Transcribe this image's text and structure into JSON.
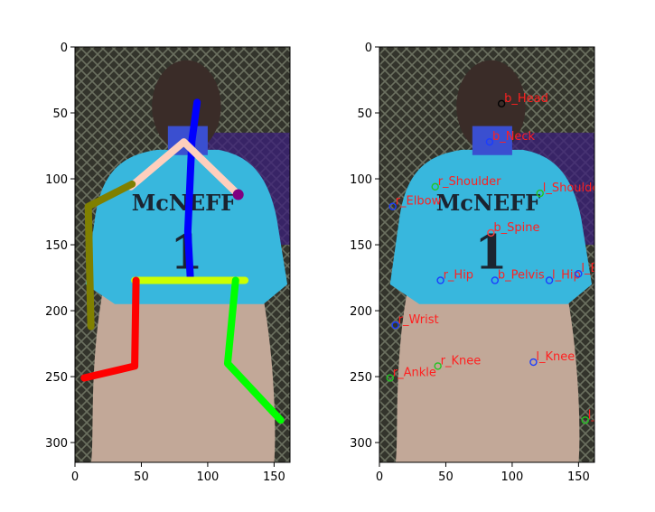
{
  "chart_data": [
    {
      "type": "scatter",
      "subtype": "skeleton-overlay-on-photo",
      "title": "",
      "xlabel": "",
      "ylabel": "",
      "xlim": [
        0,
        162
      ],
      "ylim": [
        315,
        0
      ],
      "y_inverted": true,
      "grid": false,
      "x_ticks": [
        0,
        50,
        100,
        150
      ],
      "y_ticks": [
        0,
        50,
        100,
        150,
        200,
        250,
        300
      ],
      "photo": {
        "background_color": "#33342c",
        "fence_color": "#6b7060",
        "jersey_color": "#38b7dd",
        "pants_color": "#c2a898",
        "cap_color": "#3a2c28",
        "skin_color": "#3a4fd0",
        "jersey_text": "McNEFF",
        "jersey_number": "1"
      },
      "skeleton": [
        {
          "name": "spine",
          "color": "#0000ff",
          "points": [
            [
              92,
              42
            ],
            [
              88,
              72
            ],
            [
              85,
              140
            ],
            [
              87,
              177
            ]
          ]
        },
        {
          "name": "shoulders",
          "color": "#ffcfbd",
          "points": [
            [
              42,
              106
            ],
            [
              82,
              72
            ],
            [
              121,
              110
            ]
          ]
        },
        {
          "name": "left-arm",
          "color": "#808000",
          "points": [
            [
              43,
              104
            ],
            [
              10,
              121
            ],
            [
              12,
              212
            ]
          ]
        },
        {
          "name": "hips",
          "color": "#ccff00",
          "points": [
            [
              45,
              177
            ],
            [
              128,
              177
            ]
          ]
        },
        {
          "name": "right-leg",
          "color": "#ff0000",
          "points": [
            [
              46,
              177
            ],
            [
              45,
              242
            ],
            [
              7,
              251
            ]
          ]
        },
        {
          "name": "left-leg",
          "color": "#00ff00",
          "points": [
            [
              121,
              177
            ],
            [
              115,
              240
            ],
            [
              155,
              283
            ]
          ]
        }
      ],
      "skeleton_marker": {
        "point": [
          123,
          112
        ],
        "color": "#800080"
      }
    },
    {
      "type": "scatter",
      "subtype": "keypoint-labels-on-photo",
      "title": "",
      "xlabel": "",
      "ylabel": "",
      "xlim": [
        0,
        162
      ],
      "ylim": [
        315,
        0
      ],
      "y_inverted": true,
      "grid": false,
      "x_ticks": [
        0,
        50,
        100,
        150
      ],
      "y_ticks": [
        0,
        50,
        100,
        150,
        200,
        250,
        300
      ],
      "keypoints": [
        {
          "label": "b_Head",
          "x": 92,
          "y": 43,
          "marker_color": "#000000"
        },
        {
          "label": "b_Neck",
          "x": 83,
          "y": 72,
          "marker_color": "#1a3cff"
        },
        {
          "label": "r_Shoulder",
          "x": 42,
          "y": 106,
          "marker_color": "#23c423"
        },
        {
          "label": "l_Shoulder",
          "x": 121,
          "y": 111,
          "marker_color": "#23c423"
        },
        {
          "label": "r_Elbow",
          "x": 10,
          "y": 121,
          "marker_color": "#1a3cff"
        },
        {
          "label": "b_Spine",
          "x": 84,
          "y": 141,
          "marker_color": "#ff4040"
        },
        {
          "label": "r_Hip",
          "x": 46,
          "y": 177,
          "marker_color": "#1a3cff"
        },
        {
          "label": "b_Pelvis",
          "x": 87,
          "y": 177,
          "marker_color": "#1a3cff"
        },
        {
          "label": "l_Hip",
          "x": 128,
          "y": 177,
          "marker_color": "#1a3cff"
        },
        {
          "label": "l_Elbow",
          "x": 150,
          "y": 172,
          "marker_color": "#1a3cff"
        },
        {
          "label": "r_Wrist",
          "x": 12,
          "y": 211,
          "marker_color": "#1a3cff"
        },
        {
          "label": "r_Knee",
          "x": 44,
          "y": 242,
          "marker_color": "#23c423"
        },
        {
          "label": "l_Knee",
          "x": 116,
          "y": 239,
          "marker_color": "#1a3cff"
        },
        {
          "label": "r_Ankle",
          "x": 8,
          "y": 251,
          "marker_color": "#23c423"
        },
        {
          "label": "l_",
          "x": 155,
          "y": 283,
          "marker_color": "#23c423"
        }
      ]
    }
  ]
}
